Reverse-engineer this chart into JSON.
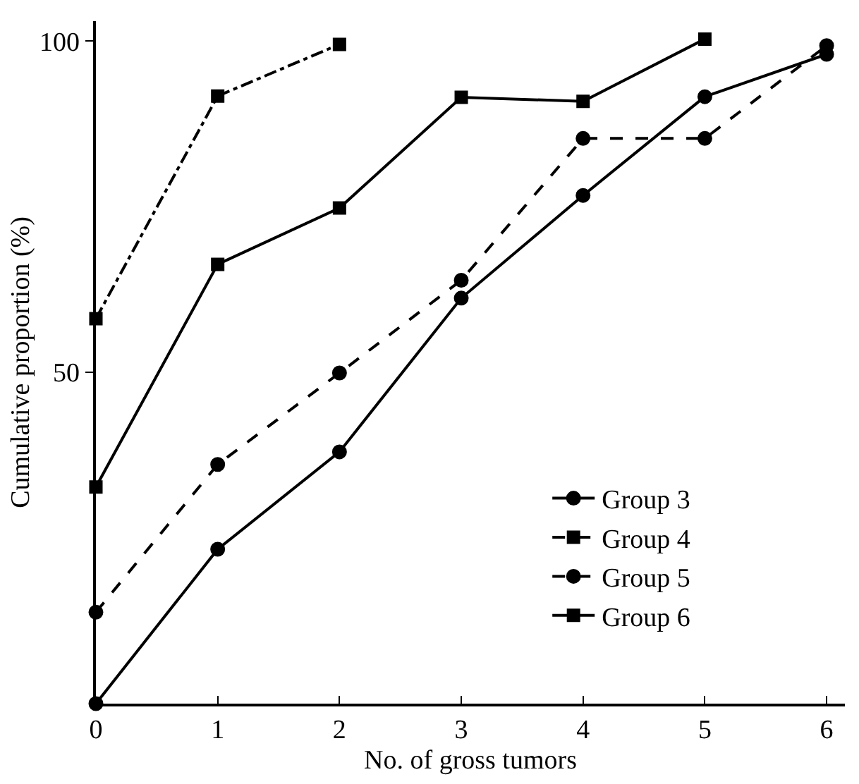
{
  "chart_data": {
    "type": "line",
    "xlabel": "No. of gross tumors",
    "ylabel": "Cumulative proportion (%)",
    "x": [
      0,
      1,
      2,
      3,
      4,
      5,
      6
    ],
    "xlim": [
      0,
      6.15
    ],
    "xticks": [
      0,
      1,
      2,
      3,
      4,
      5,
      6
    ],
    "ylim": [
      0,
      103
    ],
    "yticks": [
      50,
      100
    ],
    "grid": false,
    "legend": "bottom right",
    "series": [
      {
        "name": "Group 3",
        "color": "#000000",
        "marker": "circle",
        "line_style": "solid",
        "values": [
          0,
          23.3,
          38,
          61.2,
          76.7,
          91.6,
          98
        ]
      },
      {
        "name": "Group 4",
        "color": "#000000",
        "marker": "square",
        "line_style": "dashdot",
        "values": [
          58.1,
          91.7,
          99.5,
          null,
          null,
          null,
          null
        ]
      },
      {
        "name": "Group 5",
        "color": "#000000",
        "marker": "circle",
        "line_style": "dashed",
        "values": [
          13.8,
          36.1,
          49.9,
          63.9,
          85.3,
          85.3,
          99.3
        ]
      },
      {
        "name": "Group 6",
        "color": "#000000",
        "marker": "square",
        "line_style": "solid",
        "values": [
          32.7,
          66.3,
          74.8,
          91.5,
          90.9,
          100.3,
          null
        ]
      }
    ]
  }
}
